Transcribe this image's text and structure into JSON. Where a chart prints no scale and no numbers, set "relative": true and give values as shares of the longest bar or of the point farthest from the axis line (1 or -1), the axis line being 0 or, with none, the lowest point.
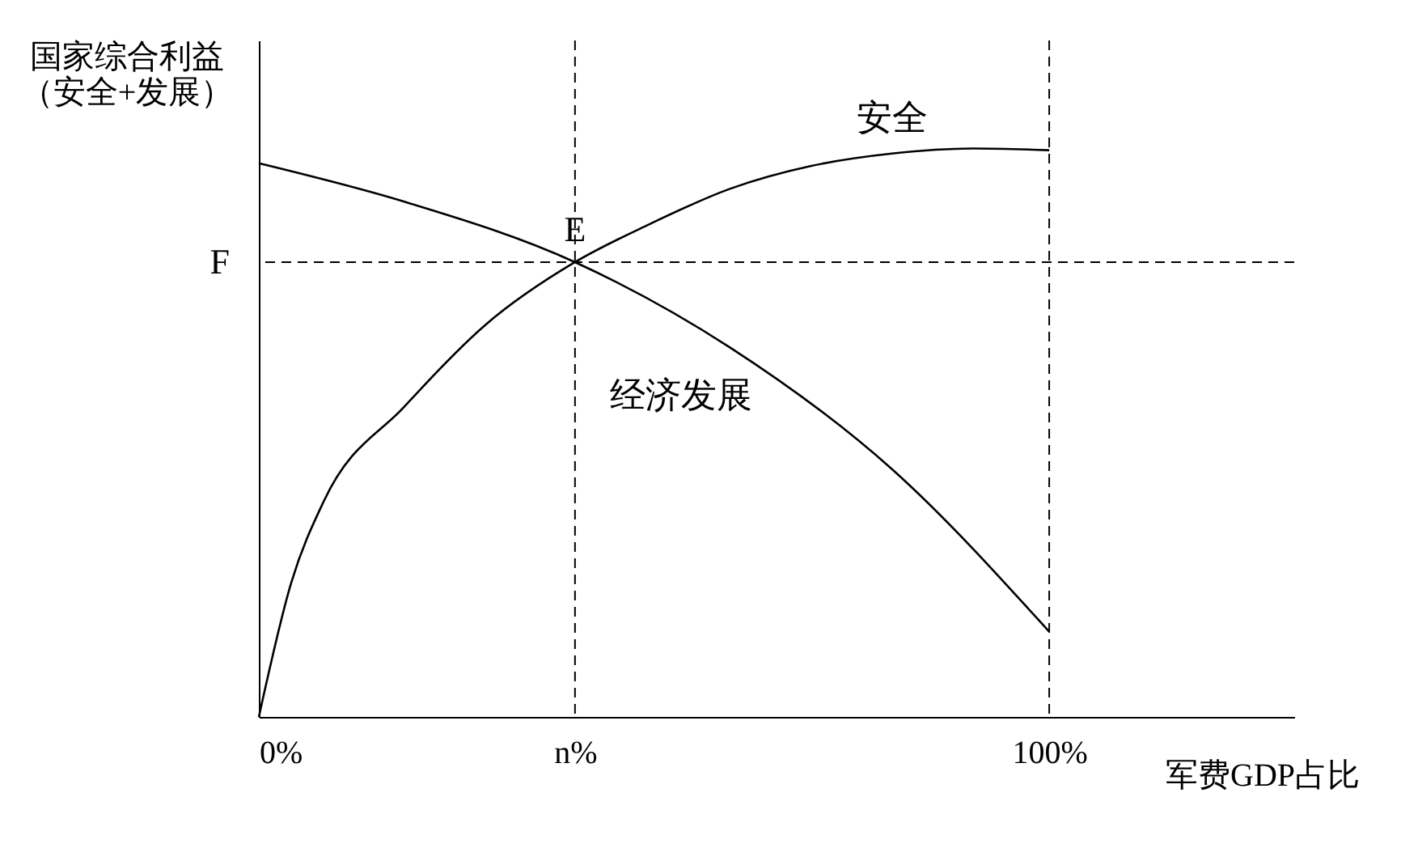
{
  "chart_data": {
    "type": "line",
    "relative": true,
    "xlabel": "军费GDP占比",
    "ylabel": "国家综合利益（安全+发展）",
    "xlim": [
      0,
      131
    ],
    "xticks": [
      {
        "value": 0,
        "label": "0%"
      },
      {
        "value": 40,
        "label": "n%"
      },
      {
        "value": 100,
        "label": "100%"
      }
    ],
    "grid": false,
    "legend": false,
    "marker": "none",
    "line_style": "solid",
    "series": [
      {
        "name": "安全",
        "color": "#000000",
        "x": [
          0,
          4.1,
          8.2,
          18.5,
          28.7,
          40,
          49.3,
          59.6,
          69.8,
          80.1,
          90.3,
          100
        ],
        "values": [
          0,
          0.236,
          0.379,
          0.547,
          0.69,
          0.8,
          0.866,
          0.929,
          0.969,
          0.991,
          1.0,
          0.997
        ]
      },
      {
        "name": "经济发展",
        "color": "#000000",
        "x": [
          0,
          18.5,
          40,
          59.6,
          80.1,
          100
        ],
        "values": [
          0.974,
          0.906,
          0.8,
          0.65,
          0.436,
          0.15
        ]
      }
    ],
    "ref_lines": [
      {
        "axis": "y",
        "value": 0.8,
        "label": "F",
        "line_style": "dashed"
      },
      {
        "axis": "x",
        "value": 40,
        "line_style": "dashed"
      },
      {
        "axis": "x",
        "value": 100,
        "line_style": "dashed"
      }
    ],
    "annotations": [
      {
        "text": "E",
        "x": 40,
        "y": 0.8
      }
    ]
  }
}
